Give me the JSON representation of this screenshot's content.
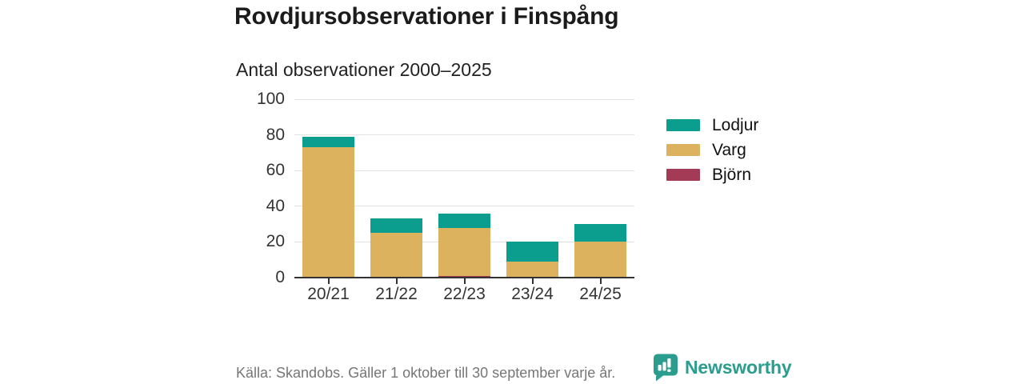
{
  "title": "Rovdjursobservationer i Finspång",
  "subtitle": "Antal observationer 2000–2025",
  "footer": {
    "source": "Källa: Skandobs. Gäller 1 oktober till 30 september varje år.",
    "brand": "Newsworthy"
  },
  "colors": {
    "lodjur": "#0b9e8f",
    "varg": "#ddb25f",
    "bjorn": "#a33a56",
    "axis": "#333333",
    "grid": "#e2e2e2",
    "title_text": "#1b1b1b",
    "muted_text": "#767676",
    "brand_teal": "#2a9d8f"
  },
  "chart_data": {
    "type": "bar",
    "stacked": true,
    "title": "Rovdjursobservationer i Finspång",
    "subtitle": "Antal observationer 2000–2025",
    "categories": [
      "20/21",
      "21/22",
      "22/23",
      "23/24",
      "24/25"
    ],
    "series": [
      {
        "name": "Björn",
        "color": "#a33a56",
        "values": [
          0,
          0,
          1,
          0,
          0
        ]
      },
      {
        "name": "Varg",
        "color": "#ddb25f",
        "values": [
          73,
          25,
          27,
          9,
          20
        ]
      },
      {
        "name": "Lodjur",
        "color": "#0b9e8f",
        "values": [
          6,
          8,
          8,
          11,
          10
        ]
      }
    ],
    "stack_order": "bottom-to-top",
    "totals": [
      79,
      33,
      36,
      20,
      30
    ],
    "yticks": [
      0,
      20,
      40,
      60,
      80,
      100
    ],
    "ylim": [
      0,
      100
    ],
    "xlabel": "",
    "ylabel": "",
    "grid": true,
    "legend_position": "right",
    "legend_order": [
      "Lodjur",
      "Varg",
      "Björn"
    ]
  }
}
